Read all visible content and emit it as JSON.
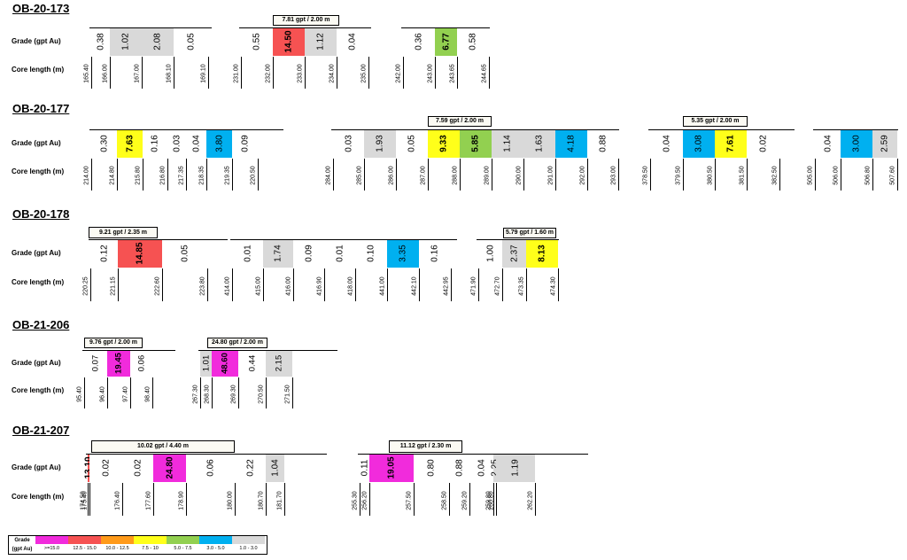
{
  "labels": {
    "grade": "Grade (gpt Au)",
    "core": "Core length (m)"
  },
  "colors": {
    "magenta": "#f12bdc",
    "red": "#f65252",
    "orange": "#ff9a1a",
    "yellow": "#ffff1a",
    "green": "#92d050",
    "blue": "#00b0f0",
    "grey": "#d9d9d9",
    "white": "#ffffff"
  },
  "holes": [
    {
      "name": "OB-20-173",
      "segments": [
        {
          "callout": null,
          "depths": [
            "165.40",
            "166.00",
            "167.00",
            "168.10",
            "169.10"
          ],
          "grades": [
            [
              "0.38",
              "white"
            ],
            [
              "1.02",
              "grey"
            ],
            [
              "2.08",
              "grey"
            ],
            [
              "0.05",
              "white"
            ]
          ]
        },
        {
          "callout": "7.81 gpt / 2.00 m",
          "depths": [
            "231.00",
            "232.00",
            "233.00",
            "234.00",
            "235.00"
          ],
          "grades": [
            [
              "0.55",
              "white"
            ],
            [
              "14.50",
              "red"
            ],
            [
              "1.12",
              "grey"
            ],
            [
              "0.04",
              "white"
            ]
          ]
        },
        {
          "callout": null,
          "depths": [
            "242.00",
            "243.00",
            "243.65",
            "244.65"
          ],
          "grades": [
            [
              "0.36",
              "white"
            ],
            [
              "6.77",
              "green"
            ],
            [
              "0.58",
              "white"
            ]
          ]
        }
      ]
    },
    {
      "name": "OB-20-177",
      "segments": [
        {
          "callout": null,
          "depths": [
            "214.00",
            "214.80",
            "215.80",
            "216.80",
            "217.35",
            "218.35",
            "219.35",
            "220.50"
          ],
          "grades": [
            [
              "0.30",
              "white"
            ],
            [
              "7.63",
              "yellow"
            ],
            [
              "0.16",
              "white"
            ],
            [
              "0.03",
              "white"
            ],
            [
              "0.04",
              "white"
            ],
            [
              "3.80",
              "blue"
            ],
            [
              "0.09",
              "white"
            ]
          ]
        },
        {
          "callout": "7.59 gpt / 2.00 m",
          "depths": [
            "284.00",
            "285.00",
            "286.00",
            "287.00",
            "288.00",
            "289.00",
            "290.00",
            "291.00",
            "292.00",
            "293.00"
          ],
          "grades": [
            [
              "0.03",
              "white"
            ],
            [
              "1.93",
              "grey"
            ],
            [
              "0.05",
              "white"
            ],
            [
              "9.33",
              "yellow"
            ],
            [
              "5.85",
              "green"
            ],
            [
              "1.14",
              "grey"
            ],
            [
              "1.63",
              "grey"
            ],
            [
              "4.18",
              "blue"
            ],
            [
              "0.88",
              "white"
            ]
          ]
        },
        {
          "callout": "5.35 gpt / 2.00 m",
          "depths": [
            "378.50",
            "379.50",
            "380.50",
            "381.50",
            "382.50"
          ],
          "grades": [
            [
              "0.04",
              "white"
            ],
            [
              "3.08",
              "blue"
            ],
            [
              "7.61",
              "yellow"
            ],
            [
              "0.02",
              "white"
            ]
          ]
        },
        {
          "callout": null,
          "depths": [
            "505.00",
            "506.00",
            "506.80",
            "507.60"
          ],
          "grades": [
            [
              "0.04",
              "white"
            ],
            [
              "3.00",
              "blue"
            ],
            [
              "2.59",
              "grey"
            ]
          ]
        }
      ]
    },
    {
      "name": "OB-20-178",
      "segments": [
        {
          "callout": "9.21 gpt / 2.35 m",
          "depths": [
            "220.25",
            "221.15",
            "222.60",
            "223.80"
          ],
          "grades": [
            [
              "0.12",
              "white"
            ],
            [
              "14.85",
              "red"
            ],
            [
              "0.05",
              "white"
            ]
          ]
        },
        {
          "callout": null,
          "depths": [
            "414.00",
            "415.00",
            "416.00",
            "416.90",
            "418.00",
            "441.00",
            "442.10",
            "442.95"
          ],
          "grades": [
            [
              "0.01",
              "white"
            ],
            [
              "1.74",
              "grey"
            ],
            [
              "0.09",
              "white"
            ],
            [
              "0.01",
              "white"
            ],
            [
              "0.10",
              "white"
            ],
            [
              "3.35",
              "blue"
            ],
            [
              "0.16",
              "white"
            ]
          ]
        },
        {
          "callout": "5.79 gpt / 1.60 m",
          "depths": [
            "471.90",
            "472.70",
            "473.35",
            "474.30"
          ],
          "grades": [
            [
              "1.00",
              "white"
            ],
            [
              "2.37",
              "grey"
            ],
            [
              "8.13",
              "yellow"
            ]
          ]
        }
      ]
    },
    {
      "name": "OB-21-206",
      "segments": [
        {
          "callout": "9.76 gpt / 2.00 m",
          "depths": [
            "95.40",
            "96.40",
            "97.40",
            "98.40"
          ],
          "grades": [
            [
              "0.07",
              "white"
            ],
            [
              "19.45",
              "magenta"
            ],
            [
              "0.06",
              "white"
            ]
          ]
        },
        {
          "callout": "24.80 gpt / 2.00 m",
          "depths": [
            "267.30",
            "268.30",
            "269.30",
            "270.50",
            "271.50"
          ],
          "grades": [
            [
              "1.01",
              "grey"
            ],
            [
              "48.60",
              "magenta"
            ],
            [
              "0.44",
              "white"
            ],
            [
              "2.15",
              "grey"
            ]
          ]
        }
      ]
    },
    {
      "name": "OB-21-207",
      "segments": [
        {
          "callout": "10.02 gpt / 4.40 m",
          "depths": [
            "174.50",
            "175.40",
            "176.40",
            "177.60",
            "178.90",
            "180.00",
            "180.70",
            "181.70"
          ],
          "grades": [
            [
              "13.10",
              "red"
            ],
            [
              "0.02",
              "white"
            ],
            [
              "0.02",
              "white"
            ],
            [
              "24.80",
              "magenta"
            ],
            [
              "0.06",
              "white"
            ],
            [
              "0.22",
              "white"
            ],
            [
              "1.04",
              "grey"
            ]
          ]
        },
        {
          "callout": "11.12 gpt / 2.30 m",
          "depths": [
            "255.30",
            "256.20",
            "257.50",
            "258.50",
            "259.20",
            "259.80",
            "260.80",
            "262.20"
          ],
          "grades": [
            [
              "0.11",
              "white"
            ],
            [
              "19.05",
              "magenta"
            ],
            [
              "0.80",
              "white"
            ],
            [
              "0.88",
              "white"
            ],
            [
              "0.04",
              "white"
            ],
            [
              "2.25",
              "grey"
            ],
            [
              "1.19",
              "grey"
            ]
          ]
        }
      ]
    }
  ],
  "legend": {
    "title_line1": "Grade",
    "title_line2": "(gpt Au)",
    "items": [
      {
        "label": ">=15.0",
        "color": "magenta"
      },
      {
        "label": "12.5 - 15.0",
        "color": "red"
      },
      {
        "label": "10.0 - 12.5",
        "color": "orange"
      },
      {
        "label": "7.5 - 10",
        "color": "yellow"
      },
      {
        "label": "5.0 - 7.5",
        "color": "green"
      },
      {
        "label": "3.0 - 5.0",
        "color": "blue"
      },
      {
        "label": "1.0 - 3.0",
        "color": "grey"
      }
    ]
  }
}
